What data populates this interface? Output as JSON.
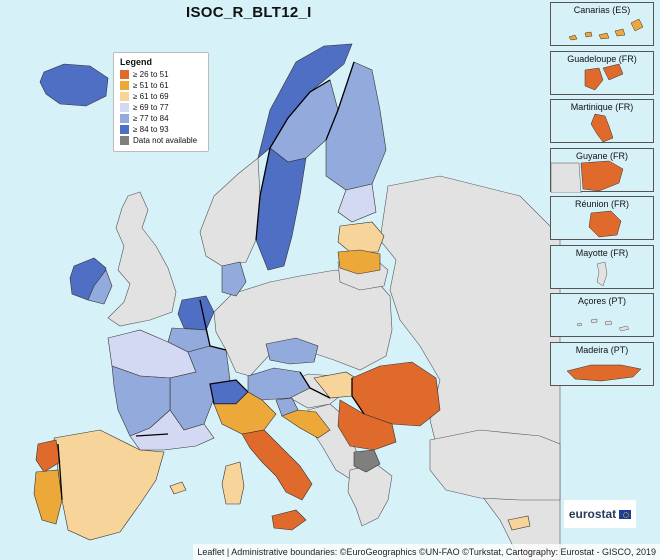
{
  "map": {
    "title": "ISOC_R_BLT12_I",
    "attribution": "Leaflet | Administrative boundaries: ©EuroGeographics ©UN-FAO ©Turkstat, Cartography: Eurostat - GISCO, 2019",
    "logo": "eurostat",
    "sea_color": "#d6f1f7"
  },
  "legend": {
    "title": "Legend",
    "items": [
      {
        "label": "≥ 26 to 51",
        "color": "#e06a2b"
      },
      {
        "label": "≥ 51 to 61",
        "color": "#eda83a"
      },
      {
        "label": "≥ 61 to 69",
        "color": "#f6d49a"
      },
      {
        "label": "≥ 69 to 77",
        "color": "#d3d9f2"
      },
      {
        "label": "≥ 77 to 84",
        "color": "#93aadd"
      },
      {
        "label": "≥ 84 to 93",
        "color": "#4f6fc4"
      },
      {
        "label": "Data not available",
        "color": "#7f7f7f"
      }
    ]
  },
  "colors": {
    "no_data_region": "#e2e2e2",
    "border": "#000000",
    "inner_border": "#555555"
  },
  "insets": [
    {
      "label": "Canarias (ES)"
    },
    {
      "label": "Guadeloupe (FR)"
    },
    {
      "label": "Martinique (FR)"
    },
    {
      "label": "Guyane (FR)"
    },
    {
      "label": "Réunion (FR)"
    },
    {
      "label": "Mayotte (FR)"
    },
    {
      "label": "Açores (PT)"
    },
    {
      "label": "Madeira (PT)"
    }
  ]
}
